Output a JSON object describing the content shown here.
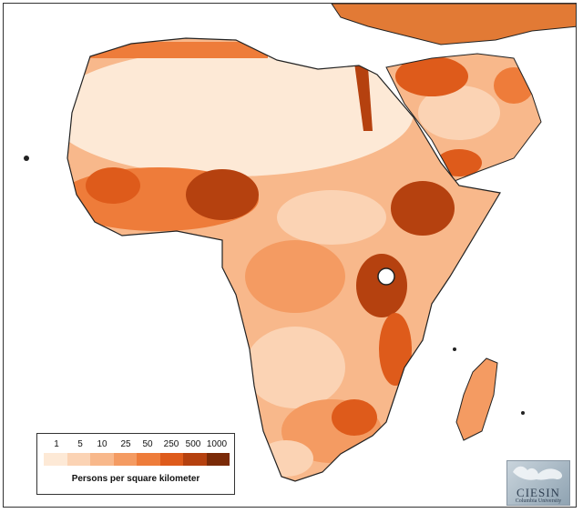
{
  "legend": {
    "ticks": [
      "1",
      "5",
      "10",
      "25",
      "50",
      "250",
      "500",
      "1000"
    ],
    "colors": [
      "#fde9d6",
      "#fbd3b4",
      "#f8b88b",
      "#f49b62",
      "#ee7c3a",
      "#de5b1b",
      "#b5410f",
      "#7a2a07"
    ],
    "title": "Persons per square kilometer"
  },
  "logo": {
    "name": "CIESIN",
    "subtitle": "Columbia University"
  },
  "colors": {
    "ocean": "#ffffff",
    "outline": "#222222",
    "sahara": "#fde9d6"
  }
}
